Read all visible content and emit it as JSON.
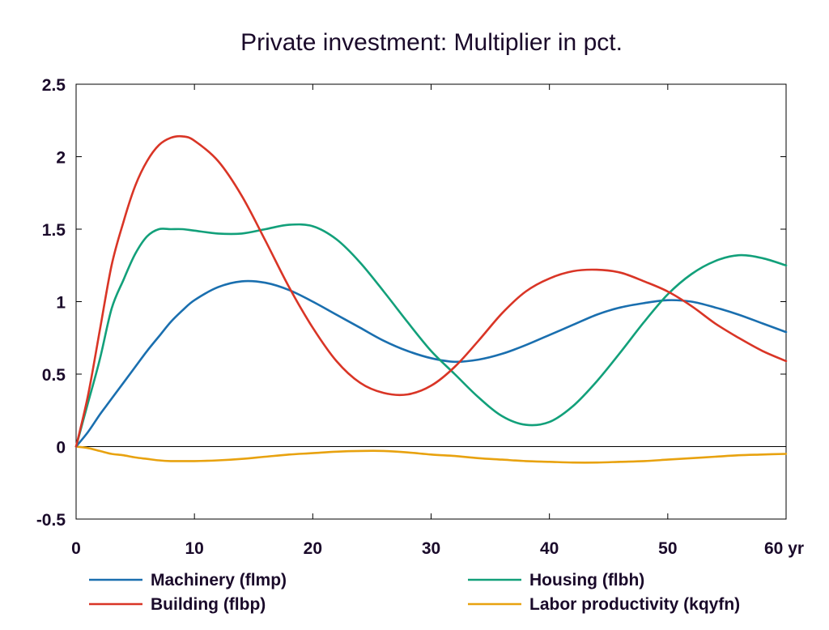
{
  "chart_data": {
    "type": "line",
    "title": "Private investment: Multiplier in pct.",
    "xlabel": "",
    "ylabel": "",
    "x_unit_label": "yr",
    "xlim": [
      0,
      60
    ],
    "ylim": [
      -0.5,
      2.5
    ],
    "x_ticks": [
      0,
      10,
      20,
      30,
      40,
      50,
      60
    ],
    "y_ticks": [
      -0.5,
      0,
      0.5,
      1,
      1.5,
      2,
      2.5
    ],
    "y_tick_labels": [
      "-0.5",
      "0",
      "0.5",
      "1",
      "1.5",
      "2",
      "2.5"
    ],
    "zero_line": true,
    "grid": false,
    "legend_position": "bottom",
    "x": [
      0,
      1,
      2,
      3,
      4,
      5,
      6,
      7,
      8,
      9,
      10,
      12,
      14,
      16,
      18,
      20,
      22,
      24,
      26,
      28,
      30,
      32,
      34,
      36,
      38,
      40,
      42,
      44,
      46,
      48,
      50,
      52,
      54,
      56,
      58,
      60
    ],
    "series": [
      {
        "name": "Machinery (flmp)",
        "color": "#1a6faf",
        "values": [
          0.0,
          0.1,
          0.22,
          0.33,
          0.44,
          0.55,
          0.66,
          0.76,
          0.86,
          0.94,
          1.01,
          1.1,
          1.14,
          1.13,
          1.08,
          1.0,
          0.91,
          0.82,
          0.73,
          0.66,
          0.61,
          0.585,
          0.6,
          0.64,
          0.7,
          0.77,
          0.84,
          0.91,
          0.96,
          0.99,
          1.01,
          1.0,
          0.96,
          0.91,
          0.85,
          0.79
        ]
      },
      {
        "name": "Housing (flbh)",
        "color": "#12a07a",
        "values": [
          0.0,
          0.3,
          0.6,
          0.95,
          1.15,
          1.33,
          1.45,
          1.5,
          1.5,
          1.5,
          1.49,
          1.47,
          1.47,
          1.5,
          1.53,
          1.52,
          1.43,
          1.27,
          1.07,
          0.86,
          0.66,
          0.5,
          0.34,
          0.21,
          0.15,
          0.17,
          0.28,
          0.45,
          0.65,
          0.86,
          1.05,
          1.19,
          1.28,
          1.32,
          1.3,
          1.25
        ]
      },
      {
        "name": "Building (flbp)",
        "color": "#d93526",
        "values": [
          0.0,
          0.35,
          0.8,
          1.25,
          1.55,
          1.8,
          1.97,
          2.08,
          2.13,
          2.14,
          2.11,
          1.97,
          1.73,
          1.42,
          1.1,
          0.82,
          0.59,
          0.44,
          0.37,
          0.36,
          0.42,
          0.55,
          0.73,
          0.92,
          1.07,
          1.16,
          1.21,
          1.22,
          1.2,
          1.14,
          1.07,
          0.97,
          0.85,
          0.75,
          0.66,
          0.59
        ]
      },
      {
        "name": "Labor productivity (kqyfn)",
        "color": "#e8a20f",
        "values": [
          0.0,
          -0.01,
          -0.03,
          -0.05,
          -0.06,
          -0.075,
          -0.085,
          -0.095,
          -0.1,
          -0.1,
          -0.1,
          -0.095,
          -0.085,
          -0.07,
          -0.055,
          -0.045,
          -0.035,
          -0.03,
          -0.03,
          -0.04,
          -0.055,
          -0.065,
          -0.08,
          -0.09,
          -0.1,
          -0.105,
          -0.11,
          -0.11,
          -0.105,
          -0.1,
          -0.09,
          -0.08,
          -0.07,
          -0.06,
          -0.055,
          -0.05
        ]
      }
    ],
    "legend": [
      {
        "name": "Machinery (flmp)",
        "color": "#1a6faf"
      },
      {
        "name": "Housing (flbh)",
        "color": "#12a07a"
      },
      {
        "name": "Building (flbp)",
        "color": "#d93526"
      },
      {
        "name": "Labor productivity (kqyfn)",
        "color": "#e8a20f"
      }
    ]
  }
}
